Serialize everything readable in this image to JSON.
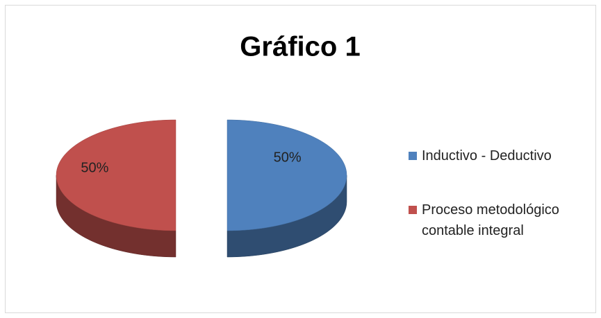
{
  "chart_data": {
    "type": "pie",
    "title": "Gráfico 1",
    "categories": [
      "Inductivo - Deductivo",
      "Proceso metodológico contable integral"
    ],
    "values": [
      50,
      50
    ],
    "value_labels": [
      "50%",
      "50%"
    ],
    "colors": [
      "#4f81bd",
      "#c0504d"
    ],
    "legend": "right"
  }
}
